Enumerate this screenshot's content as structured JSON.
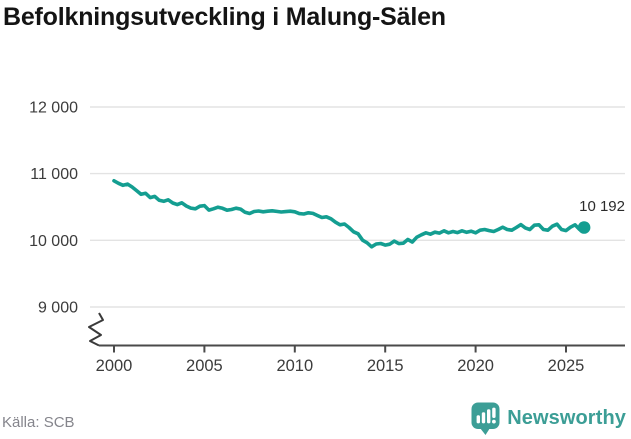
{
  "header": {
    "title": "Befolkningsutveckling i Malung-Sälen"
  },
  "footer": {
    "source": "Källa: SCB",
    "logo_text": "Newsworthy",
    "logo_icon": "bar-chart-speech-bubble"
  },
  "colors": {
    "line": "#149e91",
    "logo_teal": "#3c9e96",
    "grid": "#e3e3e3",
    "axis": "#4a4a4a",
    "tick_text": "#3c3c3c",
    "muted_text": "#85858c",
    "title_text": "#141414"
  },
  "chart_data": {
    "type": "line",
    "title": "Befolkningsutveckling i Malung-Sälen",
    "xlabel": "",
    "ylabel": "",
    "grid": "horizontal-only",
    "legend": "none",
    "axis_break": true,
    "line_color": "#149e91",
    "x_ticks": [
      2000,
      2005,
      2010,
      2015,
      2020,
      2025
    ],
    "x_tick_labels": [
      "2000",
      "2005",
      "2010",
      "2015",
      "2020",
      "2025"
    ],
    "y_ticks": [
      9000,
      10000,
      11000,
      12000
    ],
    "y_tick_labels": [
      "9 000",
      "10 000",
      "11 000",
      "12 000"
    ],
    "xlim": [
      1998.7,
      2027.3
    ],
    "ylim_display": [
      8750,
      12450
    ],
    "end_point_label": "10 192",
    "end_point_value": 10192,
    "source": "Källa: SCB",
    "series": [
      {
        "name": "Befolkning",
        "x": [
          2000.0,
          2000.25,
          2000.5,
          2000.75,
          2001.0,
          2001.25,
          2001.5,
          2001.75,
          2002.0,
          2002.25,
          2002.5,
          2002.75,
          2003.0,
          2003.25,
          2003.5,
          2003.75,
          2004.0,
          2004.25,
          2004.5,
          2004.75,
          2005.0,
          2005.25,
          2005.5,
          2005.75,
          2006.0,
          2006.25,
          2006.5,
          2006.75,
          2007.0,
          2007.25,
          2007.5,
          2007.75,
          2008.0,
          2008.25,
          2008.5,
          2008.75,
          2009.0,
          2009.25,
          2009.5,
          2009.75,
          2010.0,
          2010.25,
          2010.5,
          2010.75,
          2011.0,
          2011.25,
          2011.5,
          2011.75,
          2012.0,
          2012.25,
          2012.5,
          2012.75,
          2013.0,
          2013.25,
          2013.5,
          2013.75,
          2014.0,
          2014.25,
          2014.5,
          2014.75,
          2015.0,
          2015.25,
          2015.5,
          2015.75,
          2016.0,
          2016.25,
          2016.5,
          2016.75,
          2017.0,
          2017.25,
          2017.5,
          2017.75,
          2018.0,
          2018.25,
          2018.5,
          2018.75,
          2019.0,
          2019.25,
          2019.5,
          2019.75,
          2020.0,
          2020.25,
          2020.5,
          2020.75,
          2021.0,
          2021.25,
          2021.5,
          2021.75,
          2022.0,
          2022.25,
          2022.5,
          2022.75,
          2023.0,
          2023.25,
          2023.5,
          2023.75,
          2024.0,
          2024.25,
          2024.5,
          2024.75,
          2025.0,
          2025.25,
          2025.5,
          2025.75,
          2026.0
        ],
        "y": [
          10893,
          10855,
          10825,
          10843,
          10800,
          10745,
          10690,
          10705,
          10640,
          10658,
          10600,
          10585,
          10607,
          10560,
          10535,
          10562,
          10515,
          10483,
          10472,
          10512,
          10520,
          10453,
          10472,
          10496,
          10480,
          10452,
          10462,
          10482,
          10468,
          10420,
          10402,
          10432,
          10440,
          10428,
          10437,
          10442,
          10434,
          10424,
          10431,
          10436,
          10428,
          10400,
          10394,
          10412,
          10404,
          10372,
          10342,
          10352,
          10322,
          10272,
          10232,
          10244,
          10192,
          10128,
          10098,
          10002,
          9962,
          9902,
          9944,
          9952,
          9928,
          9942,
          9988,
          9950,
          9956,
          10012,
          9974,
          10046,
          10082,
          10112,
          10092,
          10122,
          10108,
          10142,
          10112,
          10132,
          10116,
          10142,
          10120,
          10136,
          10112,
          10152,
          10162,
          10146,
          10132,
          10162,
          10196,
          10162,
          10152,
          10192,
          10236,
          10186,
          10162,
          10226,
          10232,
          10162,
          10152,
          10212,
          10242,
          10162,
          10146,
          10196,
          10232,
          10162,
          10192
        ]
      }
    ]
  }
}
